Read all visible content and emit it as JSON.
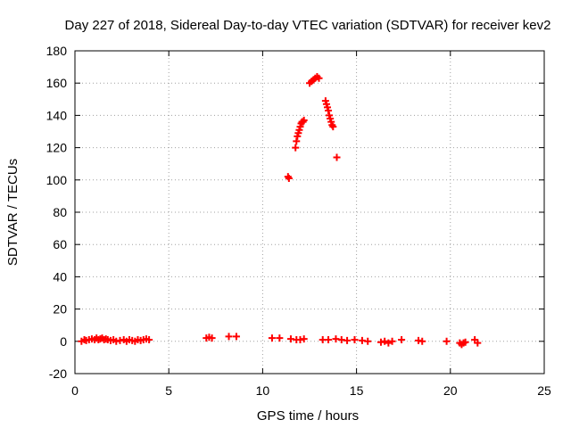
{
  "chart_data": {
    "type": "scatter",
    "title": "Day 227 of 2018, Sidereal Day-to-day VTEC variation (SDTVAR) for receiver kev2",
    "xlabel": "GPS time / hours",
    "ylabel": "SDTVAR / TECUs",
    "xlim": [
      0,
      25
    ],
    "ylim": [
      -20,
      180
    ],
    "xticks": [
      0,
      5,
      10,
      15,
      20,
      25
    ],
    "yticks": [
      -20,
      0,
      20,
      40,
      60,
      80,
      100,
      120,
      140,
      160,
      180
    ],
    "grid": true,
    "marker": "plus",
    "color": "#ff0000",
    "series": [
      {
        "name": "SDTVAR",
        "x": [
          0.35,
          0.5,
          0.6,
          0.75,
          0.9,
          1.05,
          1.15,
          1.25,
          1.35,
          1.45,
          1.55,
          1.65,
          1.75,
          1.9,
          2.05,
          2.2,
          2.4,
          2.6,
          2.75,
          2.9,
          3.05,
          3.2,
          3.35,
          3.5,
          3.65,
          3.8,
          3.95,
          7.0,
          7.15,
          7.3,
          8.2,
          8.6,
          10.5,
          10.9,
          11.35,
          11.4,
          11.75,
          11.8,
          11.85,
          11.9,
          11.95,
          12.0,
          12.05,
          12.1,
          12.15,
          12.2,
          12.5,
          12.6,
          12.7,
          12.8,
          12.9,
          13.0,
          13.35,
          13.4,
          13.45,
          13.5,
          13.55,
          13.6,
          13.65,
          13.7,
          13.75,
          13.95,
          11.5,
          11.8,
          12.0,
          12.2,
          13.2,
          13.5,
          13.9,
          14.2,
          14.5,
          14.9,
          15.3,
          15.6,
          16.3,
          16.5,
          16.7,
          16.9,
          17.4,
          18.3,
          18.5,
          19.8,
          20.5,
          20.6,
          20.7,
          20.8,
          21.3,
          21.45
        ],
        "y": [
          0,
          1,
          0.5,
          1,
          1.5,
          1,
          2,
          1,
          1.5,
          2,
          1,
          1.5,
          1,
          0.5,
          1,
          0,
          0.5,
          1,
          0,
          1,
          0.5,
          0,
          1,
          0.5,
          1,
          1.5,
          1,
          2,
          2.5,
          2,
          3,
          3,
          2,
          2,
          102,
          101,
          120,
          124,
          127,
          129,
          131,
          133,
          135,
          136,
          136,
          137,
          160,
          161,
          162,
          163,
          164,
          163,
          149,
          147,
          145,
          143,
          140,
          138,
          136,
          134,
          133,
          114,
          1.5,
          1,
          1,
          1.5,
          1,
          1,
          1.5,
          1,
          0.5,
          1,
          0.5,
          0,
          -0.5,
          0,
          -1,
          0,
          1,
          0.5,
          0,
          0,
          -1,
          -2,
          -1,
          -0.5,
          1,
          -1
        ]
      }
    ]
  }
}
